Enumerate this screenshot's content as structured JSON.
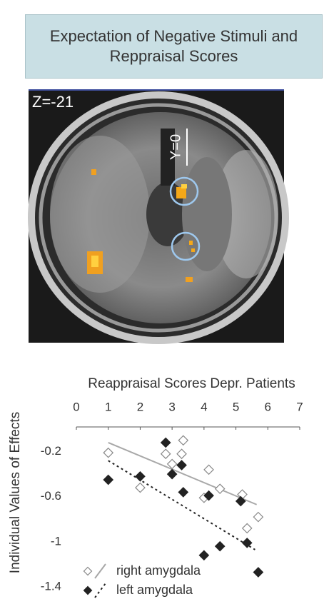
{
  "header": {
    "title": "Expectation of Negative Stimuli and Reppraisal Scores"
  },
  "image": {
    "slice_label": "Z=-21",
    "line_label": "Y=0"
  },
  "chart_data": {
    "type": "scatter",
    "x_label": "Reappraisal Scores Depr. Patients",
    "y_label": "Individual Values of Effects",
    "xlim": [
      0,
      7
    ],
    "xticks": [
      0,
      1,
      2,
      3,
      4,
      5,
      6,
      7
    ],
    "ylim": [
      -1.4,
      0
    ],
    "yticks": [
      -0.2,
      -0.6,
      -1.0,
      -1.4
    ],
    "legend": "lower left",
    "series": [
      {
        "name": "right amygdala",
        "color": "#888888",
        "line_color": "#a8a8a8",
        "marker": "open",
        "line_style": "solid",
        "x": [
          1.0,
          2.0,
          2.8,
          3.0,
          3.3,
          3.35,
          4.15,
          4.0,
          4.5,
          5.2,
          5.35,
          5.7
        ],
        "values": [
          -0.21,
          -0.52,
          -0.22,
          -0.31,
          -0.22,
          -0.1,
          -0.36,
          -0.61,
          -0.53,
          -0.58,
          -0.88,
          -0.78
        ],
        "fit": {
          "x": [
            1.0,
            5.65
          ],
          "y": [
            -0.12,
            -0.67
          ]
        }
      },
      {
        "name": "left amygdala",
        "color": "#222222",
        "line_color": "#222222",
        "marker": "filled",
        "line_style": "dotted",
        "x": [
          1.0,
          2.0,
          2.8,
          3.0,
          3.3,
          3.35,
          4.15,
          4.0,
          4.5,
          5.15,
          5.35,
          5.7
        ],
        "values": [
          -0.45,
          -0.42,
          -0.12,
          -0.4,
          -0.32,
          -0.56,
          -0.59,
          -1.12,
          -1.04,
          -0.64,
          -1.01,
          -1.27
        ],
        "fit": {
          "x": [
            1.0,
            5.6
          ],
          "y": [
            -0.28,
            -1.07
          ]
        }
      }
    ]
  }
}
